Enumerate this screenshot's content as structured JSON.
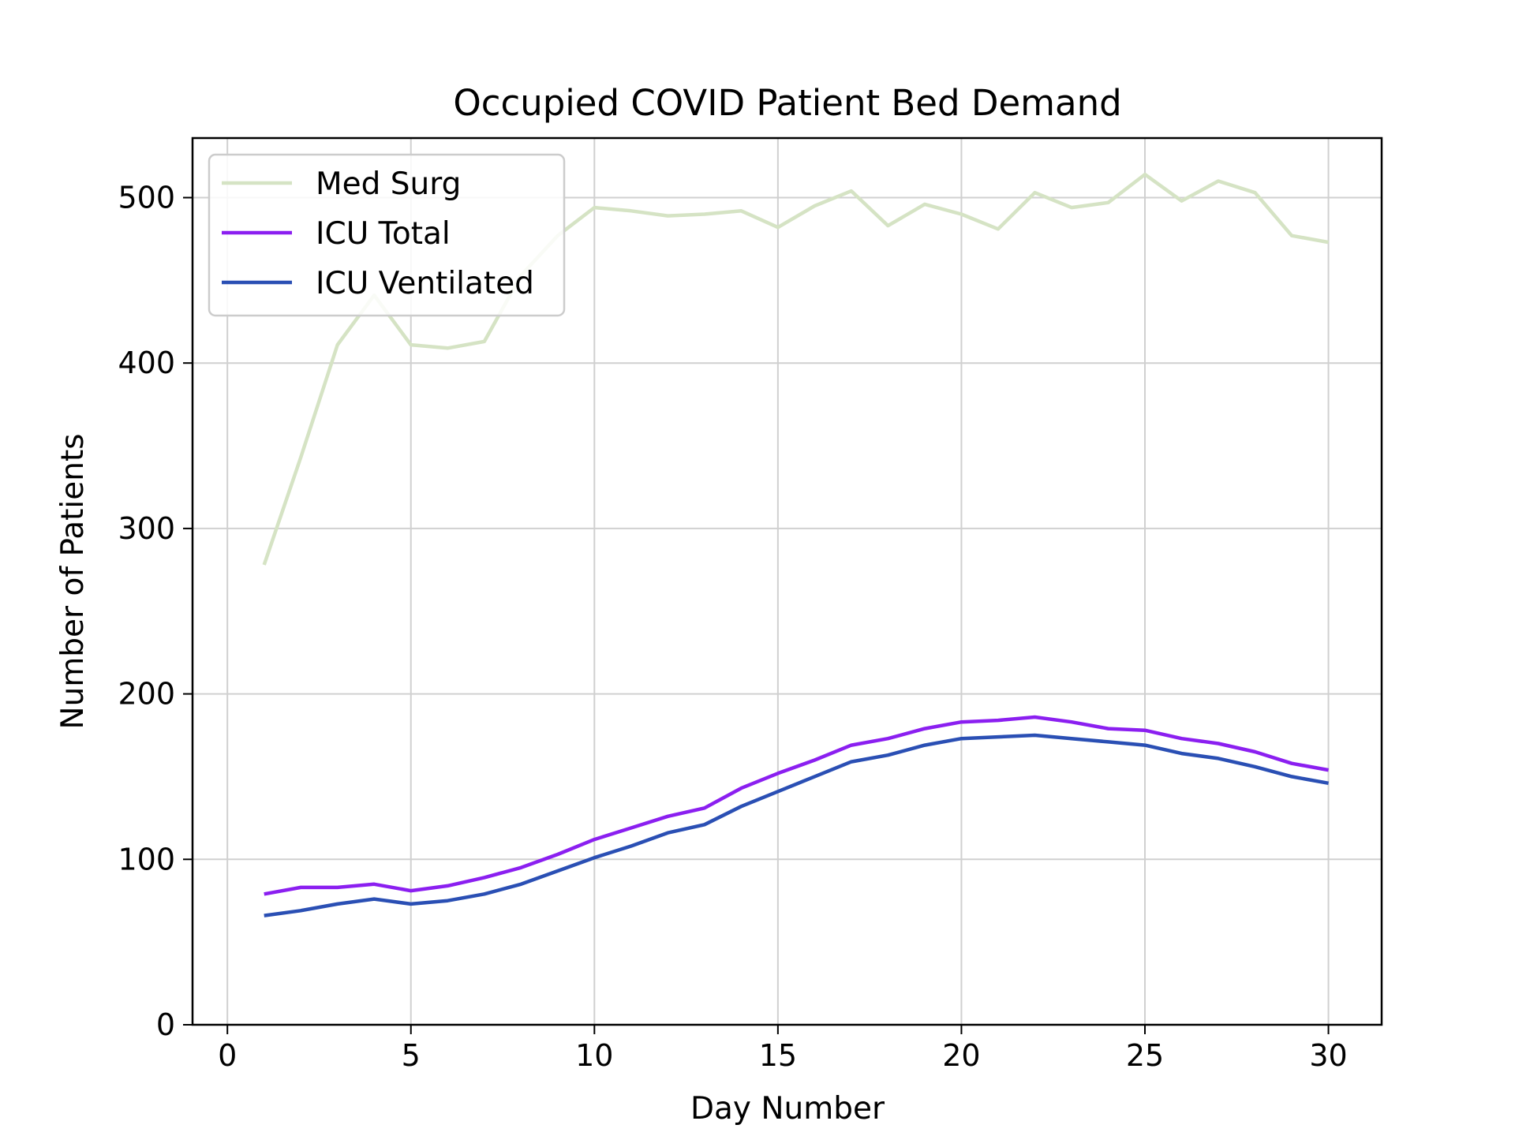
{
  "chart_data": {
    "type": "line",
    "title": "Occupied COVID Patient Bed Demand",
    "xlabel": "Day Number",
    "ylabel": "Number of Patients",
    "xlim": [
      -0.95,
      31.45
    ],
    "ylim": [
      0,
      536
    ],
    "xticks": [
      0,
      5,
      10,
      15,
      20,
      25,
      30
    ],
    "yticks": [
      0,
      100,
      200,
      300,
      400,
      500
    ],
    "grid": true,
    "legend_position": "upper-left",
    "x": [
      1,
      2,
      3,
      4,
      5,
      6,
      7,
      8,
      9,
      10,
      11,
      12,
      13,
      14,
      15,
      16,
      17,
      18,
      19,
      20,
      21,
      22,
      23,
      24,
      25,
      26,
      27,
      28,
      29,
      30
    ],
    "series": [
      {
        "name": "Med Surg",
        "color": "#d5e3c4",
        "values": [
          278,
          343,
          411,
          441,
          411,
          409,
          413,
          453,
          477,
          494,
          492,
          489,
          490,
          492,
          482,
          495,
          504,
          483,
          496,
          490,
          481,
          503,
          494,
          497,
          514,
          498,
          510,
          503,
          477,
          473
        ]
      },
      {
        "name": "ICU Total",
        "color": "#8b1ff0",
        "values": [
          79,
          83,
          83,
          85,
          81,
          84,
          89,
          95,
          103,
          112,
          119,
          126,
          131,
          143,
          152,
          160,
          169,
          173,
          179,
          183,
          184,
          186,
          183,
          179,
          178,
          173,
          170,
          165,
          158,
          154
        ]
      },
      {
        "name": "ICU Ventilated",
        "color": "#2a4fb4",
        "values": [
          66,
          69,
          73,
          76,
          73,
          75,
          79,
          85,
          93,
          101,
          108,
          116,
          121,
          132,
          141,
          150,
          159,
          163,
          169,
          173,
          174,
          175,
          173,
          171,
          169,
          164,
          161,
          156,
          150,
          146
        ]
      }
    ]
  }
}
